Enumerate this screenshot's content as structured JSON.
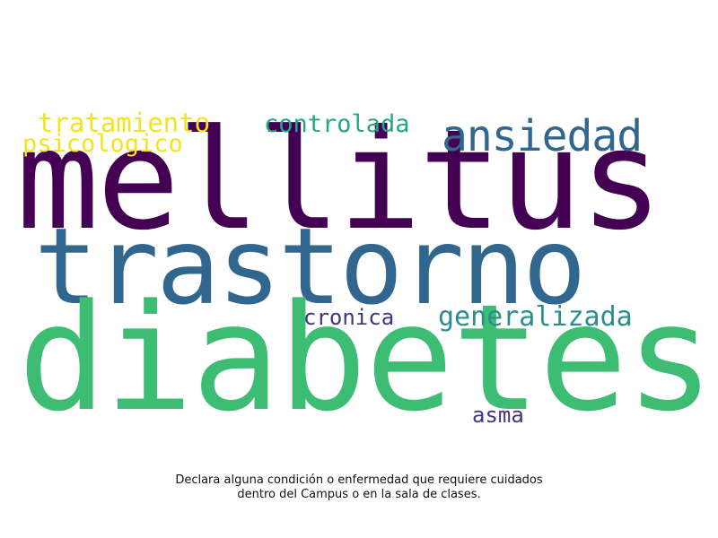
{
  "word_cloud": {
    "words": [
      {
        "text": "diabetes",
        "color": "#3dbc74"
      },
      {
        "text": "mellitus",
        "color": "#440154"
      },
      {
        "text": "trastorno",
        "color": "#31668e"
      },
      {
        "text": "ansiedad",
        "color": "#31668e"
      },
      {
        "text": "generalizada",
        "color": "#2c8e8c"
      },
      {
        "text": "tratamiento",
        "color": "#f1e51d"
      },
      {
        "text": "controlada",
        "color": "#23a884"
      },
      {
        "text": "psicologico",
        "color": "#f1e51d"
      },
      {
        "text": "cronica",
        "color": "#46337e"
      },
      {
        "text": "asma",
        "color": "#46337e"
      }
    ]
  },
  "caption": {
    "line1": "Declara alguna condición o enfermedad que requiere cuidados",
    "line2": "dentro del Campus o en la sala de clases."
  }
}
